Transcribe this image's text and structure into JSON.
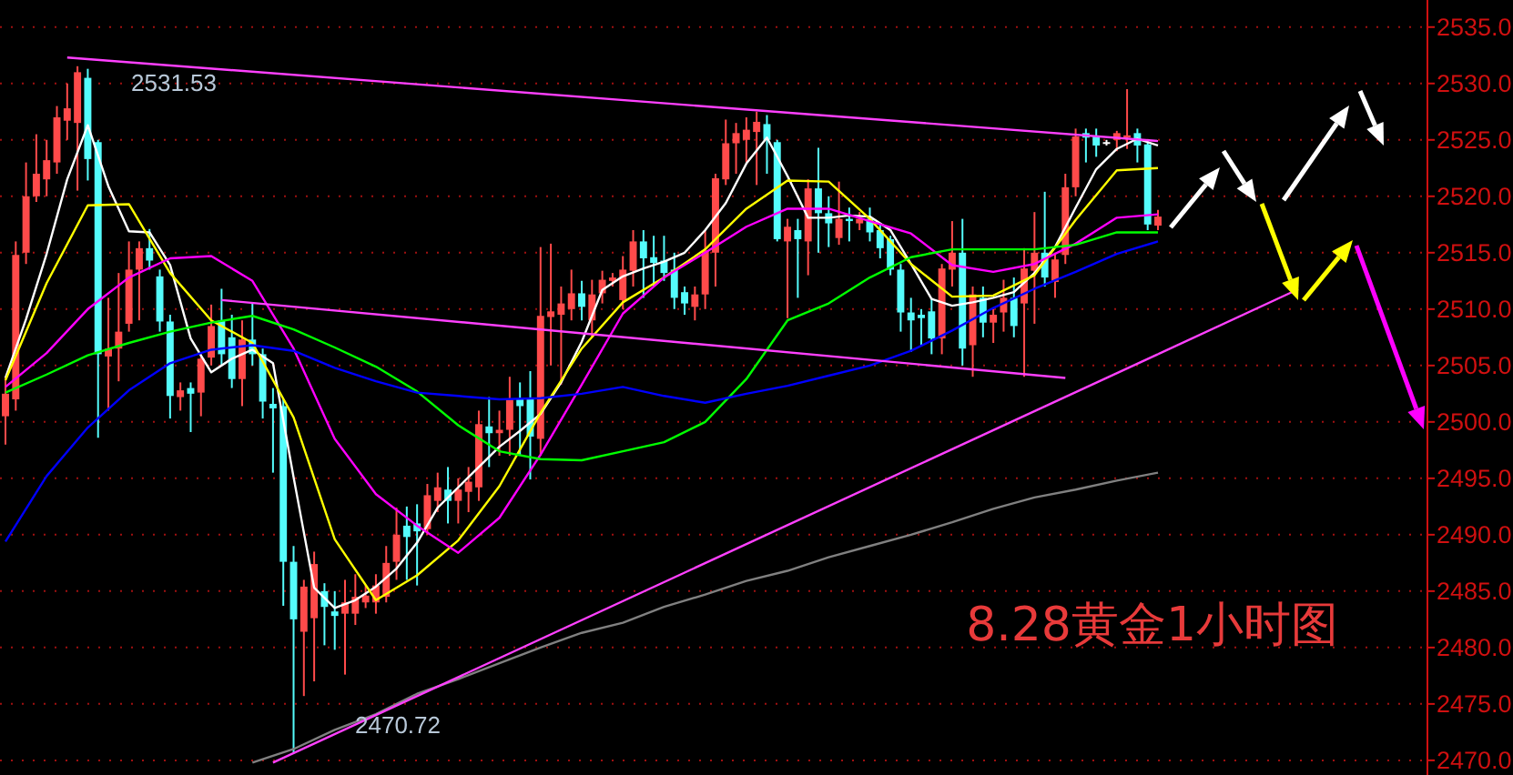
{
  "chart_data": {
    "type": "candlestick",
    "title": "8.28黄金1小时图",
    "categories": [
      null,
      null,
      null,
      null,
      null,
      null,
      null,
      null,
      null,
      null,
      null,
      null,
      null,
      null,
      null,
      null,
      null,
      null,
      null,
      null,
      null,
      null,
      null,
      null,
      null,
      null,
      null,
      null,
      null,
      null,
      null,
      null,
      null,
      null,
      null,
      null,
      null,
      null,
      null,
      null,
      null,
      null,
      null,
      null,
      null,
      null,
      null,
      null,
      null,
      null,
      null,
      null,
      null,
      null,
      null,
      null,
      null,
      null,
      null,
      null,
      null,
      null,
      null,
      null,
      null,
      null,
      null,
      null,
      null,
      null,
      null,
      null,
      null,
      null,
      null,
      null,
      null,
      null,
      null,
      null,
      null,
      null,
      null,
      null,
      null,
      null,
      null,
      null,
      null,
      null,
      null,
      null,
      null,
      null,
      null,
      null,
      null,
      null,
      null,
      null,
      null,
      null,
      null,
      null,
      null,
      null,
      null,
      null,
      null,
      null,
      null,
      null,
      null
    ],
    "ohlc": [
      [
        2500.5,
        2504,
        2498,
        2502.5
      ],
      [
        2502,
        2516,
        2501,
        2514.8
      ],
      [
        2515,
        2523,
        2514,
        2520
      ],
      [
        2520,
        2525.5,
        2519.5,
        2522
      ],
      [
        2521.5,
        2525,
        2520,
        2523.2
      ],
      [
        2523,
        2528,
        2522,
        2527
      ],
      [
        2526.7,
        2530,
        2525,
        2527.8
      ],
      [
        2526.5,
        2531.53,
        2520.5,
        2531
      ],
      [
        2530.5,
        2531.3,
        2521.4,
        2523.3
      ],
      [
        2524.8,
        2525,
        2498.6,
        2506
      ],
      [
        2505.8,
        2511,
        2501,
        2506.5
      ],
      [
        2506.5,
        2513.2,
        2503.6,
        2508
      ],
      [
        2508.7,
        2516,
        2508,
        2513.5
      ],
      [
        2513.5,
        2516,
        2509,
        2515.4
      ],
      [
        2515.4,
        2517.1,
        2513.5,
        2514.3
      ],
      [
        2512.9,
        2513.5,
        2508,
        2508.9
      ],
      [
        2508.9,
        2509.5,
        2500.3,
        2502.3
      ],
      [
        2502.2,
        2503.5,
        2501,
        2502.8
      ],
      [
        2503,
        2503.5,
        2499.1,
        2502.5
      ],
      [
        2502.6,
        2506,
        2500.5,
        2505.6
      ],
      [
        2505.7,
        2510.4,
        2505,
        2508.5
      ],
      [
        2509,
        2511.8,
        2505,
        2506
      ],
      [
        2507.5,
        2509.5,
        2503,
        2503.8
      ],
      [
        2503.8,
        2509,
        2501.4,
        2507.3
      ],
      [
        2507.3,
        2510.5,
        2505,
        2506
      ],
      [
        2506,
        2506.5,
        2500.3,
        2501.8
      ],
      [
        2501.6,
        2503,
        2495.5,
        2501.2
      ],
      [
        2501.4,
        2502,
        2483.7,
        2487.6
      ],
      [
        2487.6,
        2489,
        2470.72,
        2482.5
      ],
      [
        2481.4,
        2486,
        2475.7,
        2485.4
      ],
      [
        2482.6,
        2488.5,
        2477,
        2487.4
      ],
      [
        2485,
        2485.7,
        2480.2,
        2483.6
      ],
      [
        2483.2,
        2485,
        2479.8,
        2482.8
      ],
      [
        2483,
        2486,
        2477.6,
        2484
      ],
      [
        2483,
        2486.5,
        2482,
        2484.5
      ],
      [
        2484,
        2485.5,
        2483.5,
        2484.6
      ],
      [
        2484,
        2486.5,
        2483,
        2485.5
      ],
      [
        2484.5,
        2489,
        2484,
        2487.5
      ],
      [
        2487.6,
        2492.4,
        2486,
        2490
      ],
      [
        2490.8,
        2492.5,
        2486,
        2489.8
      ],
      [
        2491,
        2492.7,
        2485.5,
        2490.3
      ],
      [
        2490.5,
        2494.5,
        2490,
        2493.5
      ],
      [
        2493,
        2495.5,
        2492,
        2494.2
      ],
      [
        2494,
        2496,
        2491,
        2493
      ],
      [
        2493,
        2495,
        2491,
        2494
      ],
      [
        2493.8,
        2496,
        2492,
        2494.7
      ],
      [
        2494.2,
        2501,
        2493,
        2499.8
      ],
      [
        2499.6,
        2502.2,
        2496,
        2499
      ],
      [
        2499,
        2501,
        2497,
        2499.3
      ],
      [
        2499.3,
        2504,
        2497,
        2502
      ],
      [
        2502,
        2503.5,
        2497,
        2501.4
      ],
      [
        2502,
        2504.5,
        2494.9,
        2498.7
      ],
      [
        2498.5,
        2515.5,
        2497,
        2509.4
      ],
      [
        2509.3,
        2515.8,
        2505,
        2509.8
      ],
      [
        2509.5,
        2512,
        2503.3,
        2510.5
      ],
      [
        2510,
        2513.5,
        2509,
        2511.4
      ],
      [
        2511.4,
        2512.5,
        2509,
        2510.2
      ],
      [
        2509,
        2512.6,
        2507.5,
        2511.3
      ],
      [
        2511.4,
        2513.4,
        2510.5,
        2512.6
      ],
      [
        2512.5,
        2513.2,
        2512,
        2512.8
      ],
      [
        2510.8,
        2514.7,
        2510,
        2513.5
      ],
      [
        2513.4,
        2517,
        2512,
        2516
      ],
      [
        2516,
        2517,
        2511,
        2514.5
      ],
      [
        2514.6,
        2516.5,
        2512,
        2514.1
      ],
      [
        2514.3,
        2516.5,
        2512.5,
        2513.2
      ],
      [
        2513.5,
        2515,
        2510,
        2511
      ],
      [
        2511.5,
        2512,
        2509.5,
        2510.5
      ],
      [
        2510.2,
        2512,
        2509,
        2511.3
      ],
      [
        2511.3,
        2517,
        2510,
        2515.2
      ],
      [
        2515,
        2522,
        2512,
        2521.6
      ],
      [
        2521.5,
        2526.8,
        2521,
        2524.7
      ],
      [
        2524.7,
        2526.5,
        2522,
        2525.6
      ],
      [
        2525,
        2527,
        2523,
        2525.9
      ],
      [
        2525.7,
        2527.5,
        2521,
        2526.6
      ],
      [
        2526.4,
        2527.2,
        2522,
        2525
      ],
      [
        2524.8,
        2525,
        2516,
        2516.2
      ],
      [
        2516,
        2518,
        2509.2,
        2517.3
      ],
      [
        2517,
        2518,
        2511,
        2516.2
      ],
      [
        2516,
        2521.5,
        2513,
        2520.7
      ],
      [
        2520.7,
        2524.3,
        2515,
        2518.5
      ],
      [
        2518.5,
        2520,
        2515.5,
        2517.6
      ],
      [
        2516.3,
        2521.3,
        2515.7,
        2518
      ],
      [
        2518,
        2519,
        2516,
        2517.8
      ],
      [
        2517.6,
        2518.6,
        2517,
        2518
      ],
      [
        2518,
        2519,
        2516,
        2516.8
      ],
      [
        2517,
        2517.5,
        2514.5,
        2515.4
      ],
      [
        2516.2,
        2516.5,
        2513,
        2513.5
      ],
      [
        2513.5,
        2514,
        2508,
        2509.7
      ],
      [
        2509.7,
        2511,
        2506.2,
        2509
      ],
      [
        2509.5,
        2510,
        2506.7,
        2509.2
      ],
      [
        2509.8,
        2511,
        2506,
        2507.4
      ],
      [
        2507.4,
        2514,
        2506,
        2513.6
      ],
      [
        2513.5,
        2517.8,
        2512,
        2515
      ],
      [
        2515,
        2518,
        2505,
        2506.5
      ],
      [
        2506.8,
        2512,
        2504,
        2511.3
      ],
      [
        2511,
        2512,
        2507.5,
        2508.8
      ],
      [
        2508.8,
        2510,
        2507,
        2509.5
      ],
      [
        2509.7,
        2512.6,
        2508,
        2511
      ],
      [
        2511,
        2512.8,
        2507.5,
        2508.5
      ],
      [
        2510.5,
        2515.4,
        2504,
        2513.6
      ],
      [
        2513.4,
        2518.6,
        2508.7,
        2515
      ],
      [
        2515,
        2520.4,
        2512,
        2512.8
      ],
      [
        2512.4,
        2515,
        2511,
        2514.4
      ],
      [
        2514.8,
        2522,
        2514,
        2520.8
      ],
      [
        2520.8,
        2526,
        2520,
        2525.3
      ],
      [
        2525.6,
        2526,
        2523,
        2525.2
      ],
      [
        2525.3,
        2526,
        2523.5,
        2524.5
      ],
      [
        2524.8,
        2525,
        2524.5,
        2524.8
      ],
      [
        2525,
        2525.8,
        2524,
        2525.6
      ],
      [
        2525.2,
        2529.5,
        2524.2,
        2525.4
      ],
      [
        2525.6,
        2526,
        2523,
        2524.5
      ],
      [
        2524.6,
        2525,
        2517,
        2517.5
      ],
      [
        2517.4,
        2518.8,
        2517,
        2518.2
      ]
    ],
    "colors": [
      "#ff4a4a",
      "#ff4a4a",
      "#ff4a4a",
      "#ff4a4a",
      "#ff4a4a",
      "#ff4a4a",
      "#ff4a4a",
      "#ff4a4a",
      "#54fcfc",
      "#54fcfc",
      "#ff4a4a",
      "#ff4a4a",
      "#ff4a4a",
      "#ff4a4a",
      "#54fcfc",
      "#54fcfc",
      "#54fcfc",
      "#ff4a4a",
      "#54fcfc",
      "#ff4a4a",
      "#ff4a4a",
      "#54fcfc",
      "#54fcfc",
      "#ff4a4a",
      "#54fcfc",
      "#54fcfc",
      "#54fcfc",
      "#54fcfc",
      "#54fcfc",
      "#ff4a4a",
      "#ff4a4a",
      "#54fcfc",
      "#54fcfc",
      "#ff4a4a",
      "#ff4a4a",
      "#ff4a4a",
      "#ff4a4a",
      "#ff4a4a",
      "#ff4a4a",
      "#54fcfc",
      "#54fcfc",
      "#ff4a4a",
      "#ff4a4a",
      "#54fcfc",
      "#ff4a4a",
      "#ff4a4a",
      "#ff4a4a",
      "#54fcfc",
      "#ff4a4a",
      "#ff4a4a",
      "#54fcfc",
      "#54fcfc",
      "#ff4a4a",
      "#ff4a4a",
      "#ff4a4a",
      "#ff4a4a",
      "#54fcfc",
      "#ff4a4a",
      "#ff4a4a",
      "#ff4a4a",
      "#ff4a4a",
      "#ff4a4a",
      "#54fcfc",
      "#54fcfc",
      "#54fcfc",
      "#54fcfc",
      "#54fcfc",
      "#ff4a4a",
      "#ff4a4a",
      "#ff4a4a",
      "#ff4a4a",
      "#ff4a4a",
      "#ff4a4a",
      "#ff4a4a",
      "#54fcfc",
      "#54fcfc",
      "#ff4a4a",
      "#54fcfc",
      "#ff4a4a",
      "#54fcfc",
      "#54fcfc",
      "#ff4a4a",
      "#54fcfc",
      "#ff4a4a",
      "#54fcfc",
      "#54fcfc",
      "#54fcfc",
      "#54fcfc",
      "#54fcfc",
      "#54fcfc",
      "#54fcfc",
      "#ff4a4a",
      "#ff4a4a",
      "#54fcfc",
      "#ff4a4a",
      "#54fcfc",
      "#ff4a4a",
      "#ff4a4a",
      "#54fcfc",
      "#ff4a4a",
      "#ff4a4a",
      "#54fcfc",
      "#ff4a4a",
      "#ff4a4a",
      "#ff4a4a",
      "#54fcfc",
      "#54fcfc",
      "#ffffff",
      "#ff4a4a",
      "#ff4a4a",
      "#54fcfc",
      "#54fcfc",
      "#ff4a4a"
    ],
    "ylim": [
      2468.7,
      2537.4
    ],
    "yticks": [
      {
        "value": 2470,
        "label": "2470.0"
      },
      {
        "value": 2475,
        "label": "2475.0"
      },
      {
        "value": 2480,
        "label": "2480.0"
      },
      {
        "value": 2485,
        "label": "2485.0"
      },
      {
        "value": 2490,
        "label": "2490.0"
      },
      {
        "value": 2495,
        "label": "2495.0"
      },
      {
        "value": 2500,
        "label": "2500.0"
      },
      {
        "value": 2505,
        "label": "2505.0"
      },
      {
        "value": 2510,
        "label": "2510.0"
      },
      {
        "value": 2515,
        "label": "2515.0"
      },
      {
        "value": 2520,
        "label": "2520.0"
      },
      {
        "value": 2525,
        "label": "2525.0"
      },
      {
        "value": 2530,
        "label": "2530.0"
      },
      {
        "value": 2535,
        "label": "2535.0"
      }
    ],
    "grid": "y",
    "tick_labels": "y",
    "annotations": [
      "2531.53",
      "2470.72"
    ],
    "series": [
      {
        "type": "line",
        "color": "#ffffff",
        "values": [
          2503.9,
          null,
          2509.1,
          null,
          2514.9,
          null,
          2521.5,
          null,
          2526.3,
          null,
          2520.9,
          null,
          2516.9,
          null,
          2516.8,
          null,
          2513.9,
          null,
          2507.4,
          null,
          2504.4,
          null,
          2505.6,
          null,
          2506.4,
          null,
          2505.2,
          null,
          2495.1,
          null,
          2485.3,
          null,
          2483.5,
          null,
          2484.2,
          null,
          2485.4,
          null,
          2487.0,
          null,
          2489.3,
          null,
          2492.4,
          null,
          2494.2,
          null,
          2496.0,
          null,
          2497.8,
          null,
          2499.2,
          null,
          2500.7,
          null,
          2503.5,
          null,
          2507.1,
          null,
          2511.7,
          null,
          2512.9,
          null,
          2513.6,
          null,
          2514.2,
          null,
          2515.0,
          null,
          2517.0,
          null,
          2519.4,
          null,
          2522.9,
          null,
          2525.2,
          null,
          2521.8,
          null,
          2518.1,
          null,
          2518.1,
          null,
          2518.3,
          null,
          2518.2,
          null,
          2517.0,
          null,
          2514.0,
          null,
          2510.9,
          null,
          2510.3,
          null,
          2510.6,
          null,
          2511.0,
          null,
          2511.5,
          null,
          2513.2,
          null,
          2515.5,
          null,
          2519.0,
          null,
          2522.4,
          null,
          2524.2,
          null,
          2525.1,
          null,
          2524.5
        ]
      },
      {
        "type": "line",
        "color": "#ffff00",
        "values": [
          2503.7,
          null,
          null,
          null,
          2512.3,
          null,
          null,
          null,
          2519.2,
          null,
          null,
          null,
          2519.3,
          null,
          null,
          null,
          2513.2,
          null,
          null,
          null,
          2509.0,
          null,
          null,
          null,
          2507.0,
          null,
          null,
          null,
          2500.4,
          null,
          null,
          null,
          2489.6,
          null,
          null,
          null,
          2484.2,
          null,
          null,
          null,
          2486.4,
          null,
          null,
          null,
          2489.5,
          null,
          null,
          null,
          2494.3,
          null,
          null,
          null,
          2500.8,
          null,
          null,
          null,
          2506.5,
          null,
          null,
          null,
          2510.6,
          null,
          null,
          null,
          2512.8,
          null,
          null,
          null,
          2515.3,
          null,
          null,
          null,
          2518.9,
          null,
          null,
          null,
          2521.4,
          null,
          null,
          null,
          2521.3,
          null,
          null,
          null,
          2518.0,
          null,
          null,
          null,
          2514.0,
          null,
          null,
          null,
          2511.1,
          null,
          null,
          null,
          2511.2,
          null,
          null,
          null,
          2513.0,
          null,
          null,
          null,
          2517.9,
          null,
          null,
          null,
          2522.3,
          null,
          null,
          null,
          2522.5
        ]
      },
      {
        "type": "line",
        "color": "#ff00ff",
        "values": [
          2503.1,
          null,
          null,
          null,
          2506.1,
          null,
          null,
          null,
          2510.0,
          null,
          null,
          null,
          2512.8,
          null,
          null,
          null,
          2514.5,
          null,
          null,
          null,
          2514.7,
          null,
          null,
          null,
          2512.5,
          null,
          null,
          null,
          2506.5,
          null,
          null,
          null,
          2498.5,
          null,
          null,
          null,
          2493.6,
          null,
          null,
          null,
          2490.8,
          null,
          null,
          null,
          2488.4,
          null,
          null,
          null,
          2491.5,
          null,
          null,
          null,
          2497.1,
          null,
          null,
          null,
          2503.3,
          null,
          null,
          null,
          2509.6,
          null,
          null,
          null,
          2512.8,
          null,
          null,
          null,
          2515.0,
          null,
          null,
          null,
          2517.3,
          null,
          null,
          null,
          2518.9,
          null,
          null,
          null,
          2518.9,
          null,
          null,
          null,
          2517.8,
          null,
          null,
          null,
          2516.7,
          null,
          null,
          null,
          2513.9,
          null,
          null,
          null,
          2513.3,
          null,
          null,
          null,
          2514.0,
          null,
          null,
          null,
          2515.8,
          null,
          null,
          null,
          2518.1,
          null,
          null,
          null,
          2518.4
        ]
      },
      {
        "type": "line",
        "color": "#00ff00",
        "values": [
          2502.6,
          null,
          null,
          null,
          2504.2,
          null,
          null,
          null,
          2505.9,
          null,
          null,
          null,
          2507.0,
          null,
          null,
          null,
          2508.0,
          null,
          null,
          null,
          2508.8,
          null,
          null,
          null,
          2509.4,
          null,
          null,
          null,
          2508.2,
          null,
          null,
          null,
          2506.6,
          null,
          null,
          null,
          2504.9,
          null,
          null,
          null,
          2502.7,
          null,
          null,
          null,
          2499.7,
          null,
          null,
          null,
          2497.4,
          null,
          null,
          null,
          2496.7,
          null,
          null,
          null,
          2496.6,
          null,
          null,
          null,
          2497.4,
          null,
          null,
          null,
          2498.2,
          null,
          null,
          null,
          2500.0,
          null,
          null,
          null,
          2503.8,
          null,
          null,
          null,
          2509.0,
          null,
          null,
          null,
          2510.5,
          null,
          null,
          null,
          2512.8,
          null,
          null,
          null,
          2514.6,
          null,
          null,
          null,
          2515.3,
          null,
          null,
          null,
          2515.3,
          null,
          null,
          null,
          2515.3,
          null,
          null,
          null,
          2515.7,
          null,
          null,
          null,
          2516.8,
          null,
          null,
          null,
          2516.8
        ]
      },
      {
        "type": "line",
        "color": "#0000ff",
        "values": [
          2489.4,
          null,
          null,
          null,
          2495.2,
          null,
          null,
          null,
          2499.5,
          null,
          null,
          null,
          2502.8,
          null,
          null,
          null,
          2505.2,
          null,
          null,
          null,
          2506.4,
          null,
          null,
          null,
          2506.8,
          null,
          null,
          null,
          2506.3,
          null,
          null,
          null,
          2504.8,
          null,
          null,
          null,
          2503.6,
          null,
          null,
          null,
          2502.6,
          null,
          null,
          null,
          2502.3,
          null,
          null,
          null,
          2502.0,
          null,
          null,
          null,
          2502.1,
          null,
          null,
          null,
          2502.5,
          null,
          null,
          null,
          2503.1,
          null,
          null,
          null,
          2502.3,
          null,
          null,
          null,
          2501.7,
          null,
          null,
          null,
          2502.5,
          null,
          null,
          null,
          2503.2,
          null,
          null,
          null,
          2504.1,
          null,
          null,
          null,
          2505.0,
          null,
          null,
          null,
          2506.3,
          null,
          null,
          null,
          2508.1,
          null,
          null,
          null,
          2510.1,
          null,
          null,
          null,
          2511.8,
          null,
          null,
          null,
          2513.3,
          null,
          null,
          null,
          2514.9,
          null,
          null,
          null,
          2516.0
        ]
      },
      {
        "type": "line",
        "color": "#808080",
        "values": [
          null,
          null,
          null,
          null,
          null,
          null,
          null,
          null,
          null,
          null,
          null,
          null,
          null,
          null,
          null,
          null,
          null,
          null,
          null,
          null,
          null,
          null,
          null,
          null,
          2469.8,
          null,
          null,
          null,
          2471.0,
          null,
          null,
          null,
          2472.7,
          null,
          null,
          null,
          2474.1,
          null,
          null,
          null,
          2475.9,
          null,
          null,
          null,
          2477.2,
          null,
          null,
          null,
          2478.6,
          null,
          null,
          null,
          2480.0,
          null,
          null,
          null,
          2481.3,
          null,
          null,
          null,
          2482.2,
          null,
          null,
          null,
          2483.6,
          null,
          null,
          null,
          2484.7,
          null,
          null,
          null,
          2485.9,
          null,
          null,
          null,
          2486.8,
          null,
          null,
          null,
          2488.0,
          null,
          null,
          null,
          2489.0,
          null,
          null,
          null,
          2490.0,
          null,
          null,
          null,
          2491.1,
          null,
          null,
          null,
          2492.3,
          null,
          null,
          null,
          2493.3,
          null,
          null,
          null,
          2494.0,
          null,
          null,
          null,
          2494.8,
          null,
          null,
          null,
          2495.5
        ]
      },
      {
        "type": "line",
        "color": "#ff40ff",
        "values": [
          null,
          null,
          null,
          null,
          null,
          null,
          2532.3,
          null,
          null,
          null,
          null,
          null,
          null,
          null,
          null,
          null,
          null,
          null,
          null,
          null,
          null,
          null,
          null,
          null,
          null,
          null,
          null,
          null,
          null,
          null,
          null,
          null,
          null,
          null,
          null,
          null,
          null,
          null,
          null,
          null,
          null,
          null,
          null,
          null,
          null,
          null,
          null,
          null,
          null,
          null,
          null,
          null,
          null,
          null,
          null,
          null,
          null,
          null,
          null,
          null,
          null,
          null,
          null,
          null,
          null,
          null,
          null,
          null,
          null,
          null,
          null,
          null,
          null,
          null,
          null,
          null,
          null,
          null,
          null,
          null,
          null,
          null,
          null,
          null,
          null,
          null,
          null,
          null,
          null,
          null,
          null,
          null,
          null,
          null,
          null,
          null,
          null,
          null,
          null,
          null,
          null,
          null,
          null,
          null,
          null,
          null,
          null,
          null,
          null,
          null,
          null,
          null,
          2524.9
        ]
      },
      {
        "type": "line",
        "color": "#ff40ff",
        "values": [
          null,
          null,
          null,
          null,
          null,
          null,
          null,
          null,
          null,
          null,
          null,
          null,
          null,
          null,
          null,
          null,
          null,
          null,
          null,
          null,
          null,
          2510.8,
          null,
          null,
          null,
          null,
          null,
          null,
          null,
          null,
          null,
          null,
          null,
          null,
          null,
          null,
          null,
          null,
          null,
          null,
          null,
          null,
          null,
          null,
          null,
          null,
          null,
          null,
          null,
          null,
          null,
          null,
          null,
          null,
          null,
          null,
          null,
          null,
          null,
          null,
          null,
          null,
          null,
          null,
          null,
          null,
          null,
          null,
          null,
          null,
          null,
          null,
          null,
          null,
          null,
          null,
          null,
          null,
          null,
          null,
          null,
          null,
          null,
          null,
          null,
          null,
          null,
          null,
          null,
          null,
          null,
          null,
          null,
          null,
          null,
          null,
          null,
          null,
          null,
          null,
          null,
          null,
          null,
          2503.9,
          null,
          null,
          null,
          null,
          null,
          null,
          null,
          null,
          null
        ]
      },
      {
        "type": "line",
        "color": "#ff40ff",
        "values": [
          null,
          null,
          null,
          null,
          null,
          null,
          null,
          null,
          null,
          null,
          null,
          null,
          null,
          null,
          null,
          null,
          null,
          null,
          null,
          null,
          null,
          null,
          null,
          null,
          null,
          null,
          2469.8,
          null,
          null,
          null,
          null,
          null,
          null,
          null,
          null,
          null,
          null,
          null,
          null,
          null,
          null,
          null,
          null,
          null,
          null,
          null,
          null,
          null,
          null,
          null,
          null,
          null,
          null,
          null,
          null,
          null,
          null,
          null,
          null,
          null,
          null,
          null,
          null,
          null,
          null,
          null,
          null,
          null,
          null,
          null,
          null,
          null,
          null,
          null,
          null,
          null,
          null,
          null,
          null,
          null,
          null,
          null,
          null,
          null,
          null,
          null,
          null,
          null,
          null,
          null,
          null,
          null,
          null,
          null,
          null,
          null,
          null,
          null,
          null,
          null,
          null,
          null,
          null,
          null,
          null,
          null,
          null,
          null,
          null,
          null,
          null,
          null,
          2506.0
        ]
      }
    ]
  }
}
